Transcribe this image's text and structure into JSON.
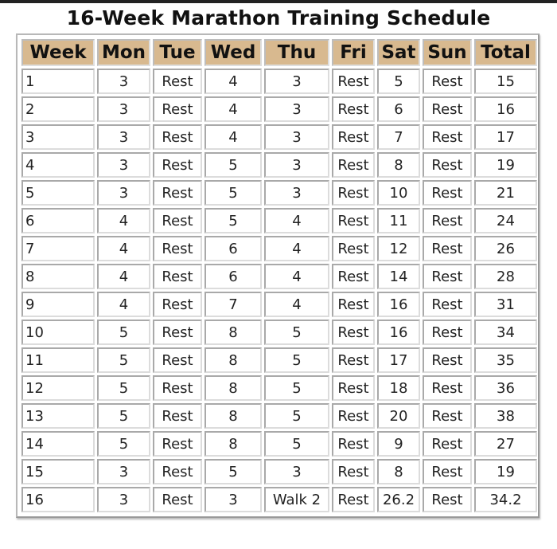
{
  "title": "16-Week Marathon Training Schedule",
  "table": {
    "headers": [
      "Week",
      "Mon",
      "Tue",
      "Wed",
      "Thu",
      "Fri",
      "Sat",
      "Sun",
      "Total"
    ],
    "rows": [
      [
        "1",
        "3",
        "Rest",
        "4",
        "3",
        "Rest",
        "5",
        "Rest",
        "15"
      ],
      [
        "2",
        "3",
        "Rest",
        "4",
        "3",
        "Rest",
        "6",
        "Rest",
        "16"
      ],
      [
        "3",
        "3",
        "Rest",
        "4",
        "3",
        "Rest",
        "7",
        "Rest",
        "17"
      ],
      [
        "4",
        "3",
        "Rest",
        "5",
        "3",
        "Rest",
        "8",
        "Rest",
        "19"
      ],
      [
        "5",
        "3",
        "Rest",
        "5",
        "3",
        "Rest",
        "10",
        "Rest",
        "21"
      ],
      [
        "6",
        "4",
        "Rest",
        "5",
        "4",
        "Rest",
        "11",
        "Rest",
        "24"
      ],
      [
        "7",
        "4",
        "Rest",
        "6",
        "4",
        "Rest",
        "12",
        "Rest",
        "26"
      ],
      [
        "8",
        "4",
        "Rest",
        "6",
        "4",
        "Rest",
        "14",
        "Rest",
        "28"
      ],
      [
        "9",
        "4",
        "Rest",
        "7",
        "4",
        "Rest",
        "16",
        "Rest",
        "31"
      ],
      [
        "10",
        "5",
        "Rest",
        "8",
        "5",
        "Rest",
        "16",
        "Rest",
        "34"
      ],
      [
        "11",
        "5",
        "Rest",
        "8",
        "5",
        "Rest",
        "17",
        "Rest",
        "35"
      ],
      [
        "12",
        "5",
        "Rest",
        "8",
        "5",
        "Rest",
        "18",
        "Rest",
        "36"
      ],
      [
        "13",
        "5",
        "Rest",
        "8",
        "5",
        "Rest",
        "20",
        "Rest",
        "38"
      ],
      [
        "14",
        "5",
        "Rest",
        "8",
        "5",
        "Rest",
        "9",
        "Rest",
        "27"
      ],
      [
        "15",
        "3",
        "Rest",
        "5",
        "3",
        "Rest",
        "8",
        "Rest",
        "19"
      ],
      [
        "16",
        "3",
        "Rest",
        "3",
        "Walk 2",
        "Rest",
        "26.2",
        "Rest",
        "34.2"
      ]
    ]
  },
  "colors": {
    "header_bg": "#d8b98f",
    "border": "#c9c9c9"
  }
}
